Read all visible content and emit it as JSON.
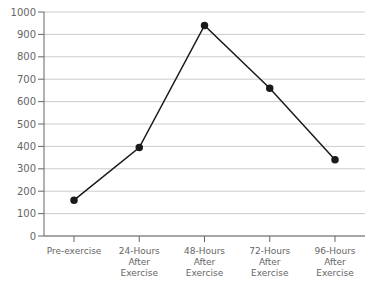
{
  "chart_data": {
    "type": "line",
    "categories": [
      "Pre-exercise",
      "24-Hours\nAfter\nExercise",
      "48-Hours\nAfter\nExercise",
      "72-Hours\nAfter\nExercise",
      "96-Hours\nAfter\nExercise"
    ],
    "values": [
      160,
      395,
      940,
      660,
      340
    ],
    "color": "#1a1a1a",
    "marker": "circle",
    "ylim": [
      0,
      1000
    ],
    "yticks": [
      0,
      100,
      200,
      300,
      400,
      500,
      600,
      700,
      800,
      900,
      1000
    ],
    "grid": true
  }
}
